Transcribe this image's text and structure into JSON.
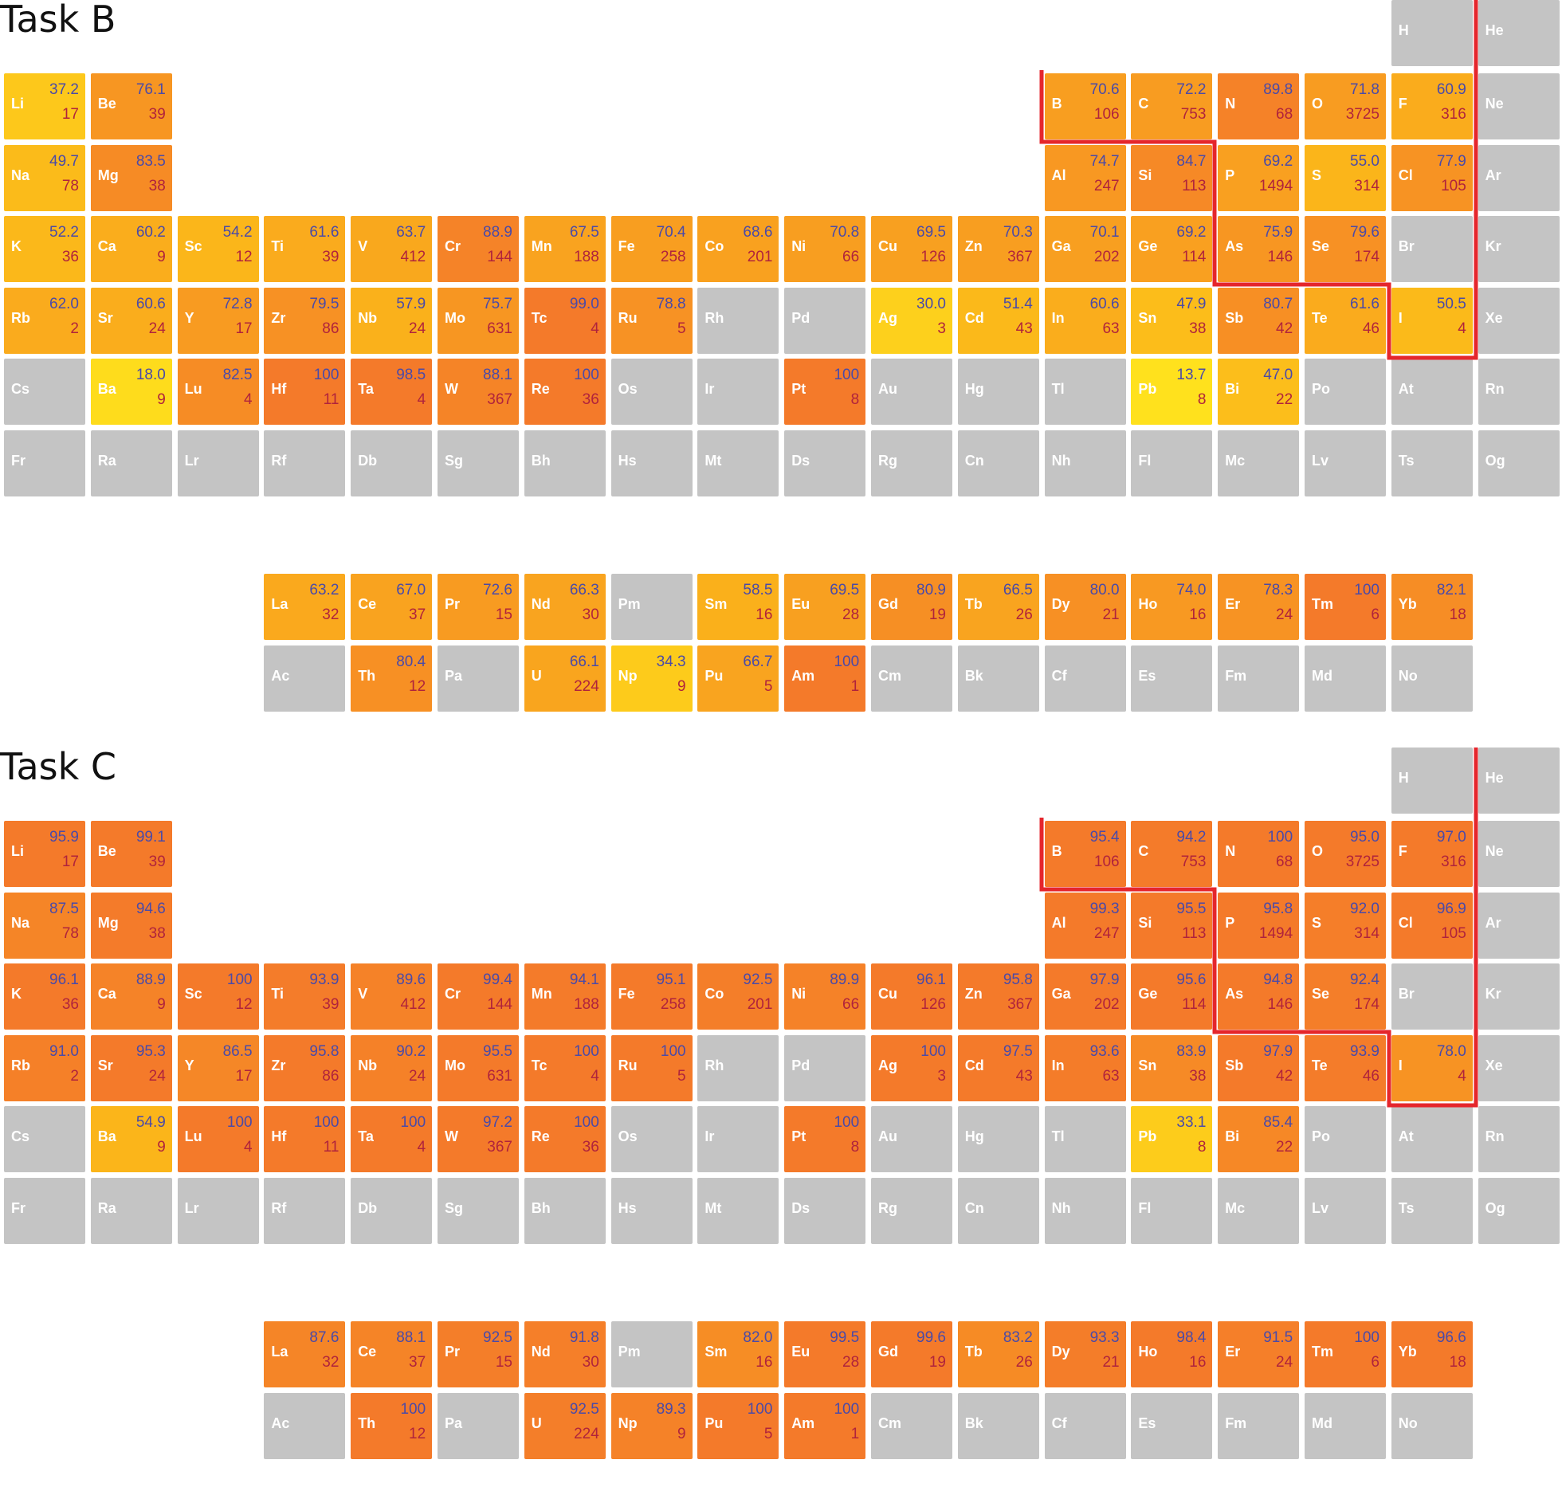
{
  "colors": {
    "no_data": "#c4c4c4",
    "scale_low": "#ffe51d",
    "scale_mid": "#fbb51a",
    "scale_high": "#f47a2a",
    "score_text": "#4a4aa8",
    "count_text": "#b0233c",
    "boundary_line": "#e5262c"
  },
  "chart_data": [
    {
      "type": "heatmap",
      "title": "Task B",
      "layout": "periodic-table",
      "cell_value_top": "score",
      "cell_value_bottom": "count",
      "cells": [
        {
          "sym": "H"
        },
        {
          "sym": "He"
        },
        {
          "sym": "Li",
          "score": "37.2",
          "count": "17"
        },
        {
          "sym": "Be",
          "score": "76.1",
          "count": "39"
        },
        {
          "sym": "B",
          "score": "70.6",
          "count": "106"
        },
        {
          "sym": "C",
          "score": "72.2",
          "count": "753"
        },
        {
          "sym": "N",
          "score": "89.8",
          "count": "68"
        },
        {
          "sym": "O",
          "score": "71.8",
          "count": "3725"
        },
        {
          "sym": "F",
          "score": "60.9",
          "count": "316"
        },
        {
          "sym": "Ne"
        },
        {
          "sym": "Na",
          "score": "49.7",
          "count": "78"
        },
        {
          "sym": "Mg",
          "score": "83.5",
          "count": "38"
        },
        {
          "sym": "Al",
          "score": "74.7",
          "count": "247"
        },
        {
          "sym": "Si",
          "score": "84.7",
          "count": "113"
        },
        {
          "sym": "P",
          "score": "69.2",
          "count": "1494"
        },
        {
          "sym": "S",
          "score": "55.0",
          "count": "314"
        },
        {
          "sym": "Cl",
          "score": "77.9",
          "count": "105"
        },
        {
          "sym": "Ar"
        },
        {
          "sym": "K",
          "score": "52.2",
          "count": "36"
        },
        {
          "sym": "Ca",
          "score": "60.2",
          "count": "9"
        },
        {
          "sym": "Sc",
          "score": "54.2",
          "count": "12"
        },
        {
          "sym": "Ti",
          "score": "61.6",
          "count": "39"
        },
        {
          "sym": "V",
          "score": "63.7",
          "count": "412"
        },
        {
          "sym": "Cr",
          "score": "88.9",
          "count": "144"
        },
        {
          "sym": "Mn",
          "score": "67.5",
          "count": "188"
        },
        {
          "sym": "Fe",
          "score": "70.4",
          "count": "258"
        },
        {
          "sym": "Co",
          "score": "68.6",
          "count": "201"
        },
        {
          "sym": "Ni",
          "score": "70.8",
          "count": "66"
        },
        {
          "sym": "Cu",
          "score": "69.5",
          "count": "126"
        },
        {
          "sym": "Zn",
          "score": "70.3",
          "count": "367"
        },
        {
          "sym": "Ga",
          "score": "70.1",
          "count": "202"
        },
        {
          "sym": "Ge",
          "score": "69.2",
          "count": "114"
        },
        {
          "sym": "As",
          "score": "75.9",
          "count": "146"
        },
        {
          "sym": "Se",
          "score": "79.6",
          "count": "174"
        },
        {
          "sym": "Br"
        },
        {
          "sym": "Kr"
        },
        {
          "sym": "Rb",
          "score": "62.0",
          "count": "2"
        },
        {
          "sym": "Sr",
          "score": "60.6",
          "count": "24"
        },
        {
          "sym": "Y",
          "score": "72.8",
          "count": "17"
        },
        {
          "sym": "Zr",
          "score": "79.5",
          "count": "86"
        },
        {
          "sym": "Nb",
          "score": "57.9",
          "count": "24"
        },
        {
          "sym": "Mo",
          "score": "75.7",
          "count": "631"
        },
        {
          "sym": "Tc",
          "score": "99.0",
          "count": "4"
        },
        {
          "sym": "Ru",
          "score": "78.8",
          "count": "5"
        },
        {
          "sym": "Rh"
        },
        {
          "sym": "Pd"
        },
        {
          "sym": "Ag",
          "score": "30.0",
          "count": "3"
        },
        {
          "sym": "Cd",
          "score": "51.4",
          "count": "43"
        },
        {
          "sym": "In",
          "score": "60.6",
          "count": "63"
        },
        {
          "sym": "Sn",
          "score": "47.9",
          "count": "38"
        },
        {
          "sym": "Sb",
          "score": "80.7",
          "count": "42"
        },
        {
          "sym": "Te",
          "score": "61.6",
          "count": "46"
        },
        {
          "sym": "I",
          "score": "50.5",
          "count": "4"
        },
        {
          "sym": "Xe"
        },
        {
          "sym": "Cs"
        },
        {
          "sym": "Ba",
          "score": "18.0",
          "count": "9"
        },
        {
          "sym": "Lu",
          "score": "82.5",
          "count": "4"
        },
        {
          "sym": "Hf",
          "score": "100",
          "count": "11"
        },
        {
          "sym": "Ta",
          "score": "98.5",
          "count": "4"
        },
        {
          "sym": "W",
          "score": "88.1",
          "count": "367"
        },
        {
          "sym": "Re",
          "score": "100",
          "count": "36"
        },
        {
          "sym": "Os"
        },
        {
          "sym": "Ir"
        },
        {
          "sym": "Pt",
          "score": "100",
          "count": "8"
        },
        {
          "sym": "Au"
        },
        {
          "sym": "Hg"
        },
        {
          "sym": "Tl"
        },
        {
          "sym": "Pb",
          "score": "13.7",
          "count": "8"
        },
        {
          "sym": "Bi",
          "score": "47.0",
          "count": "22"
        },
        {
          "sym": "Po"
        },
        {
          "sym": "At"
        },
        {
          "sym": "Rn"
        },
        {
          "sym": "Fr"
        },
        {
          "sym": "Ra"
        },
        {
          "sym": "Lr"
        },
        {
          "sym": "Rf"
        },
        {
          "sym": "Db"
        },
        {
          "sym": "Sg"
        },
        {
          "sym": "Bh"
        },
        {
          "sym": "Hs"
        },
        {
          "sym": "Mt"
        },
        {
          "sym": "Ds"
        },
        {
          "sym": "Rg"
        },
        {
          "sym": "Cn"
        },
        {
          "sym": "Nh"
        },
        {
          "sym": "Fl"
        },
        {
          "sym": "Mc"
        },
        {
          "sym": "Lv"
        },
        {
          "sym": "Ts"
        },
        {
          "sym": "Og"
        },
        {
          "sym": "La",
          "score": "63.2",
          "count": "32"
        },
        {
          "sym": "Ce",
          "score": "67.0",
          "count": "37"
        },
        {
          "sym": "Pr",
          "score": "72.6",
          "count": "15"
        },
        {
          "sym": "Nd",
          "score": "66.3",
          "count": "30"
        },
        {
          "sym": "Pm"
        },
        {
          "sym": "Sm",
          "score": "58.5",
          "count": "16"
        },
        {
          "sym": "Eu",
          "score": "69.5",
          "count": "28"
        },
        {
          "sym": "Gd",
          "score": "80.9",
          "count": "19"
        },
        {
          "sym": "Tb",
          "score": "66.5",
          "count": "26"
        },
        {
          "sym": "Dy",
          "score": "80.0",
          "count": "21"
        },
        {
          "sym": "Ho",
          "score": "74.0",
          "count": "16"
        },
        {
          "sym": "Er",
          "score": "78.3",
          "count": "24"
        },
        {
          "sym": "Tm",
          "score": "100",
          "count": "6"
        },
        {
          "sym": "Yb",
          "score": "82.1",
          "count": "18"
        },
        {
          "sym": "Ac"
        },
        {
          "sym": "Th",
          "score": "80.4",
          "count": "12"
        },
        {
          "sym": "Pa"
        },
        {
          "sym": "U",
          "score": "66.1",
          "count": "224"
        },
        {
          "sym": "Np",
          "score": "34.3",
          "count": "9"
        },
        {
          "sym": "Pu",
          "score": "66.7",
          "count": "5"
        },
        {
          "sym": "Am",
          "score": "100",
          "count": "1"
        },
        {
          "sym": "Cm"
        },
        {
          "sym": "Bk"
        },
        {
          "sym": "Cf"
        },
        {
          "sym": "Es"
        },
        {
          "sym": "Fm"
        },
        {
          "sym": "Md"
        },
        {
          "sym": "No"
        }
      ]
    },
    {
      "type": "heatmap",
      "title": "Task C",
      "layout": "periodic-table",
      "cell_value_top": "score",
      "cell_value_bottom": "count",
      "cells": [
        {
          "sym": "H"
        },
        {
          "sym": "He"
        },
        {
          "sym": "Li",
          "score": "95.9",
          "count": "17"
        },
        {
          "sym": "Be",
          "score": "99.1",
          "count": "39"
        },
        {
          "sym": "B",
          "score": "95.4",
          "count": "106"
        },
        {
          "sym": "C",
          "score": "94.2",
          "count": "753"
        },
        {
          "sym": "N",
          "score": "100",
          "count": "68"
        },
        {
          "sym": "O",
          "score": "95.0",
          "count": "3725"
        },
        {
          "sym": "F",
          "score": "97.0",
          "count": "316"
        },
        {
          "sym": "Ne"
        },
        {
          "sym": "Na",
          "score": "87.5",
          "count": "78"
        },
        {
          "sym": "Mg",
          "score": "94.6",
          "count": "38"
        },
        {
          "sym": "Al",
          "score": "99.3",
          "count": "247"
        },
        {
          "sym": "Si",
          "score": "95.5",
          "count": "113"
        },
        {
          "sym": "P",
          "score": "95.8",
          "count": "1494"
        },
        {
          "sym": "S",
          "score": "92.0",
          "count": "314"
        },
        {
          "sym": "Cl",
          "score": "96.9",
          "count": "105"
        },
        {
          "sym": "Ar"
        },
        {
          "sym": "K",
          "score": "96.1",
          "count": "36"
        },
        {
          "sym": "Ca",
          "score": "88.9",
          "count": "9"
        },
        {
          "sym": "Sc",
          "score": "100",
          "count": "12"
        },
        {
          "sym": "Ti",
          "score": "93.9",
          "count": "39"
        },
        {
          "sym": "V",
          "score": "89.6",
          "count": "412"
        },
        {
          "sym": "Cr",
          "score": "99.4",
          "count": "144"
        },
        {
          "sym": "Mn",
          "score": "94.1",
          "count": "188"
        },
        {
          "sym": "Fe",
          "score": "95.1",
          "count": "258"
        },
        {
          "sym": "Co",
          "score": "92.5",
          "count": "201"
        },
        {
          "sym": "Ni",
          "score": "89.9",
          "count": "66"
        },
        {
          "sym": "Cu",
          "score": "96.1",
          "count": "126"
        },
        {
          "sym": "Zn",
          "score": "95.8",
          "count": "367"
        },
        {
          "sym": "Ga",
          "score": "97.9",
          "count": "202"
        },
        {
          "sym": "Ge",
          "score": "95.6",
          "count": "114"
        },
        {
          "sym": "As",
          "score": "94.8",
          "count": "146"
        },
        {
          "sym": "Se",
          "score": "92.4",
          "count": "174"
        },
        {
          "sym": "Br"
        },
        {
          "sym": "Kr"
        },
        {
          "sym": "Rb",
          "score": "91.0",
          "count": "2"
        },
        {
          "sym": "Sr",
          "score": "95.3",
          "count": "24"
        },
        {
          "sym": "Y",
          "score": "86.5",
          "count": "17"
        },
        {
          "sym": "Zr",
          "score": "95.8",
          "count": "86"
        },
        {
          "sym": "Nb",
          "score": "90.2",
          "count": "24"
        },
        {
          "sym": "Mo",
          "score": "95.5",
          "count": "631"
        },
        {
          "sym": "Tc",
          "score": "100",
          "count": "4"
        },
        {
          "sym": "Ru",
          "score": "100",
          "count": "5"
        },
        {
          "sym": "Rh"
        },
        {
          "sym": "Pd"
        },
        {
          "sym": "Ag",
          "score": "100",
          "count": "3"
        },
        {
          "sym": "Cd",
          "score": "97.5",
          "count": "43"
        },
        {
          "sym": "In",
          "score": "93.6",
          "count": "63"
        },
        {
          "sym": "Sn",
          "score": "83.9",
          "count": "38"
        },
        {
          "sym": "Sb",
          "score": "97.9",
          "count": "42"
        },
        {
          "sym": "Te",
          "score": "93.9",
          "count": "46"
        },
        {
          "sym": "I",
          "score": "78.0",
          "count": "4"
        },
        {
          "sym": "Xe"
        },
        {
          "sym": "Cs"
        },
        {
          "sym": "Ba",
          "score": "54.9",
          "count": "9"
        },
        {
          "sym": "Lu",
          "score": "100",
          "count": "4"
        },
        {
          "sym": "Hf",
          "score": "100",
          "count": "11"
        },
        {
          "sym": "Ta",
          "score": "100",
          "count": "4"
        },
        {
          "sym": "W",
          "score": "97.2",
          "count": "367"
        },
        {
          "sym": "Re",
          "score": "100",
          "count": "36"
        },
        {
          "sym": "Os"
        },
        {
          "sym": "Ir"
        },
        {
          "sym": "Pt",
          "score": "100",
          "count": "8"
        },
        {
          "sym": "Au"
        },
        {
          "sym": "Hg"
        },
        {
          "sym": "Tl"
        },
        {
          "sym": "Pb",
          "score": "33.1",
          "count": "8"
        },
        {
          "sym": "Bi",
          "score": "85.4",
          "count": "22"
        },
        {
          "sym": "Po"
        },
        {
          "sym": "At"
        },
        {
          "sym": "Rn"
        },
        {
          "sym": "Fr"
        },
        {
          "sym": "Ra"
        },
        {
          "sym": "Lr"
        },
        {
          "sym": "Rf"
        },
        {
          "sym": "Db"
        },
        {
          "sym": "Sg"
        },
        {
          "sym": "Bh"
        },
        {
          "sym": "Hs"
        },
        {
          "sym": "Mt"
        },
        {
          "sym": "Ds"
        },
        {
          "sym": "Rg"
        },
        {
          "sym": "Cn"
        },
        {
          "sym": "Nh"
        },
        {
          "sym": "Fl"
        },
        {
          "sym": "Mc"
        },
        {
          "sym": "Lv"
        },
        {
          "sym": "Ts"
        },
        {
          "sym": "Og"
        },
        {
          "sym": "La",
          "score": "87.6",
          "count": "32"
        },
        {
          "sym": "Ce",
          "score": "88.1",
          "count": "37"
        },
        {
          "sym": "Pr",
          "score": "92.5",
          "count": "15"
        },
        {
          "sym": "Nd",
          "score": "91.8",
          "count": "30"
        },
        {
          "sym": "Pm"
        },
        {
          "sym": "Sm",
          "score": "82.0",
          "count": "16"
        },
        {
          "sym": "Eu",
          "score": "99.5",
          "count": "28"
        },
        {
          "sym": "Gd",
          "score": "99.6",
          "count": "19"
        },
        {
          "sym": "Tb",
          "score": "83.2",
          "count": "26"
        },
        {
          "sym": "Dy",
          "score": "93.3",
          "count": "21"
        },
        {
          "sym": "Ho",
          "score": "98.4",
          "count": "16"
        },
        {
          "sym": "Er",
          "score": "91.5",
          "count": "24"
        },
        {
          "sym": "Tm",
          "score": "100",
          "count": "6"
        },
        {
          "sym": "Yb",
          "score": "96.6",
          "count": "18"
        },
        {
          "sym": "Ac"
        },
        {
          "sym": "Th",
          "score": "100",
          "count": "12"
        },
        {
          "sym": "Pa"
        },
        {
          "sym": "U",
          "score": "92.5",
          "count": "224"
        },
        {
          "sym": "Np",
          "score": "89.3",
          "count": "9"
        },
        {
          "sym": "Pu",
          "score": "100",
          "count": "5"
        },
        {
          "sym": "Am",
          "score": "100",
          "count": "1"
        },
        {
          "sym": "Cm"
        },
        {
          "sym": "Bk"
        },
        {
          "sym": "Cf"
        },
        {
          "sym": "Es"
        },
        {
          "sym": "Fm"
        },
        {
          "sym": "Md"
        },
        {
          "sym": "No"
        }
      ]
    }
  ]
}
